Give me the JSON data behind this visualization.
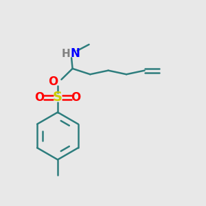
{
  "background_color": "#e8e8e8",
  "bond_color": "#2d7d7d",
  "N_color": "#0000ff",
  "O_color": "#ff0000",
  "S_color": "#cccc00",
  "H_color": "#808080",
  "figsize": [
    3.0,
    3.0
  ],
  "dpi": 100,
  "xlim": [
    0,
    10
  ],
  "ylim": [
    0,
    10
  ]
}
